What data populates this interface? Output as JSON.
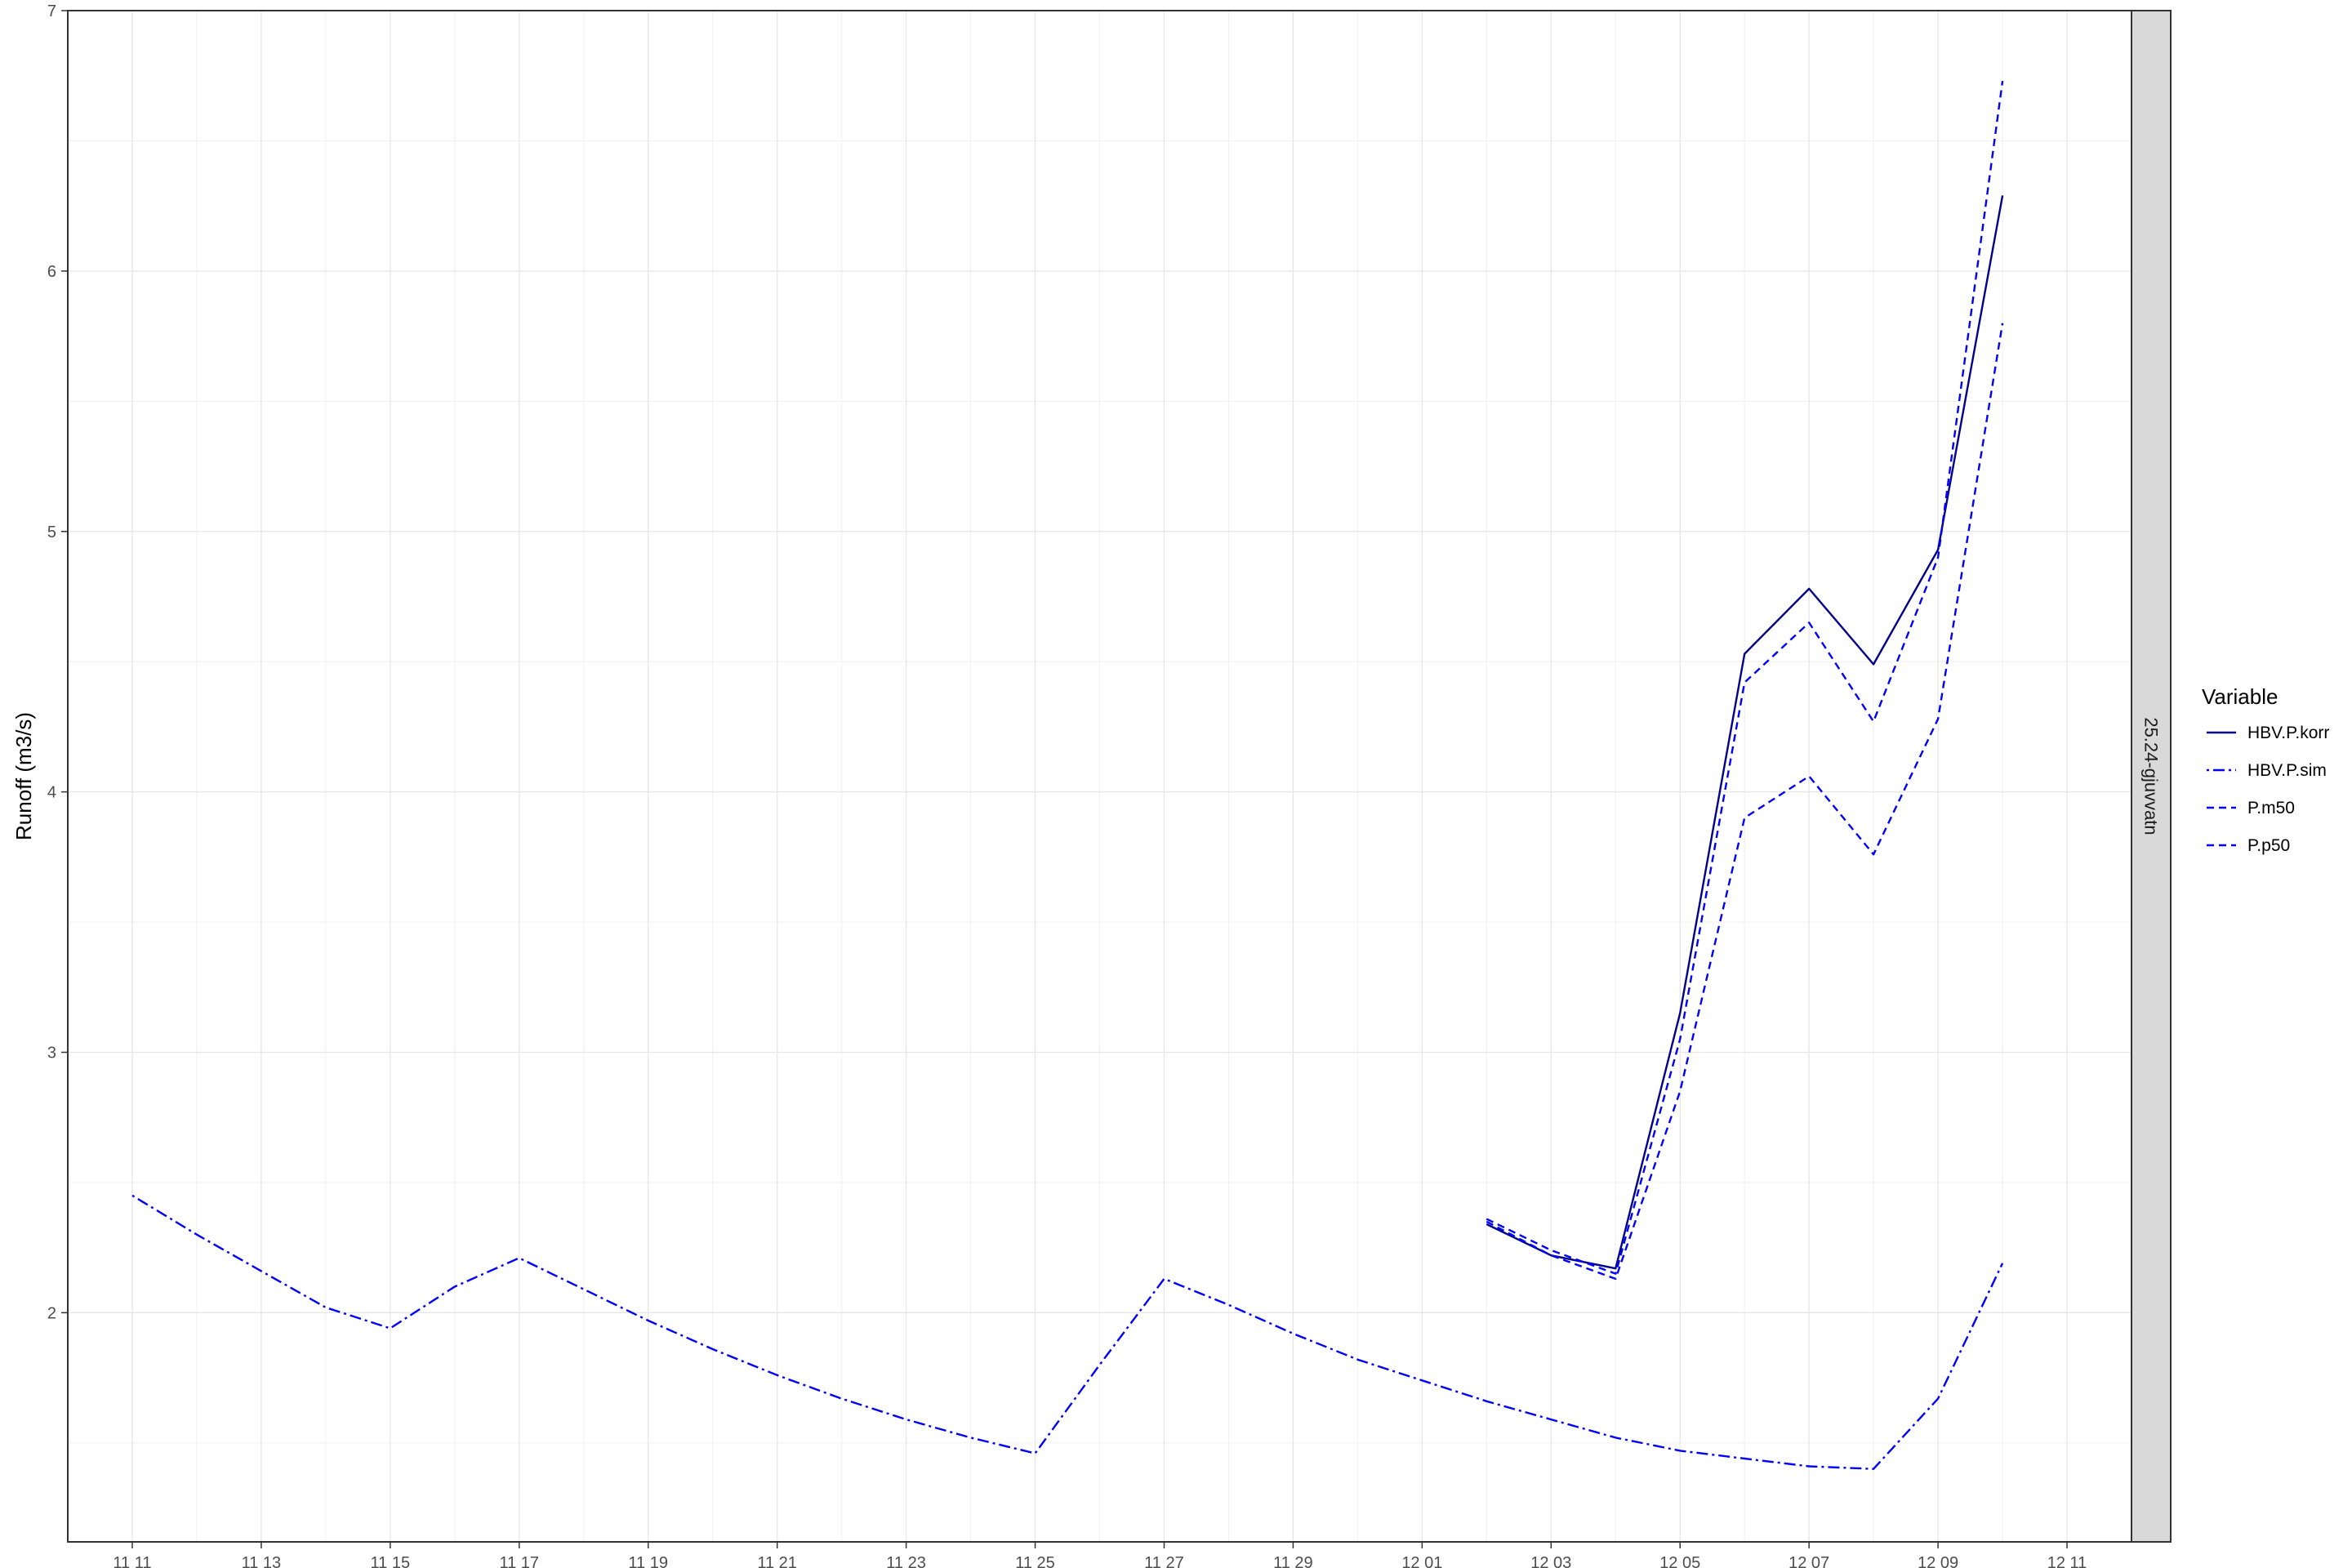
{
  "chart_data": {
    "type": "line",
    "title": "",
    "xlabel": "",
    "ylabel": "Runoff (m3/s)",
    "facet_label": "25.24-gjuvvatn",
    "legend_title": "Variable",
    "legend_position": "right",
    "grid": true,
    "xlim": [
      "2010-11-10",
      "2010-12-12"
    ],
    "ylim": [
      1.12,
      7.0
    ],
    "x_ticks": [
      "11 11",
      "11 13",
      "11 15",
      "11 17",
      "11 19",
      "11 21",
      "11 23",
      "11 25",
      "11 27",
      "11 29",
      "12 01",
      "12 03",
      "12 05",
      "12 07",
      "12 09",
      "12 11"
    ],
    "y_ticks": [
      "2",
      "3",
      "4",
      "5",
      "6",
      "7"
    ],
    "series": [
      {
        "name": "HBV.P.korr",
        "color": "#00008B",
        "line_style": "solid",
        "x": [
          "2010-12-02",
          "2010-12-03",
          "2010-12-04",
          "2010-12-05",
          "2010-12-06",
          "2010-12-07",
          "2010-12-08",
          "2010-12-09",
          "2010-12-10"
        ],
        "values": [
          2.34,
          2.22,
          2.17,
          3.15,
          4.53,
          4.78,
          4.49,
          4.93,
          6.29
        ]
      },
      {
        "name": "HBV.P.sim",
        "color": "#0000FF",
        "line_style": "dotdash",
        "x": [
          "2010-11-11",
          "2010-11-12",
          "2010-11-13",
          "2010-11-14",
          "2010-11-15",
          "2010-11-16",
          "2010-11-17",
          "2010-11-18",
          "2010-11-19",
          "2010-11-20",
          "2010-11-21",
          "2010-11-22",
          "2010-11-23",
          "2010-11-24",
          "2010-11-25",
          "2010-11-26",
          "2010-11-27",
          "2010-11-28",
          "2010-11-29",
          "2010-11-30",
          "2010-12-01",
          "2010-12-02",
          "2010-12-03",
          "2010-12-04",
          "2010-12-05",
          "2010-12-06",
          "2010-12-07",
          "2010-12-08",
          "2010-12-09",
          "2010-12-10"
        ],
        "values": [
          2.45,
          2.3,
          2.16,
          2.02,
          1.94,
          2.1,
          2.21,
          2.09,
          1.97,
          1.86,
          1.76,
          1.67,
          1.59,
          1.52,
          1.46,
          1.8,
          2.13,
          2.03,
          1.92,
          1.82,
          1.74,
          1.66,
          1.59,
          1.52,
          1.47,
          1.44,
          1.41,
          1.4,
          1.67,
          2.19
        ]
      },
      {
        "name": "P.m50",
        "color": "#0000FF",
        "line_style": "dashed",
        "x": [
          "2010-12-02",
          "2010-12-03",
          "2010-12-04",
          "2010-12-05",
          "2010-12-06",
          "2010-12-07",
          "2010-12-08",
          "2010-12-09",
          "2010-12-10"
        ],
        "values": [
          2.35,
          2.22,
          2.13,
          2.85,
          3.9,
          4.06,
          3.76,
          4.28,
          5.8
        ]
      },
      {
        "name": "P.p50",
        "color": "#0000FF",
        "line_style": "dashed",
        "x": [
          "2010-12-02",
          "2010-12-03",
          "2010-12-04",
          "2010-12-05",
          "2010-12-06",
          "2010-12-07",
          "2010-12-08",
          "2010-12-09",
          "2010-12-10"
        ],
        "values": [
          2.36,
          2.24,
          2.15,
          3.05,
          4.42,
          4.65,
          4.27,
          4.9,
          6.73
        ]
      }
    ]
  }
}
